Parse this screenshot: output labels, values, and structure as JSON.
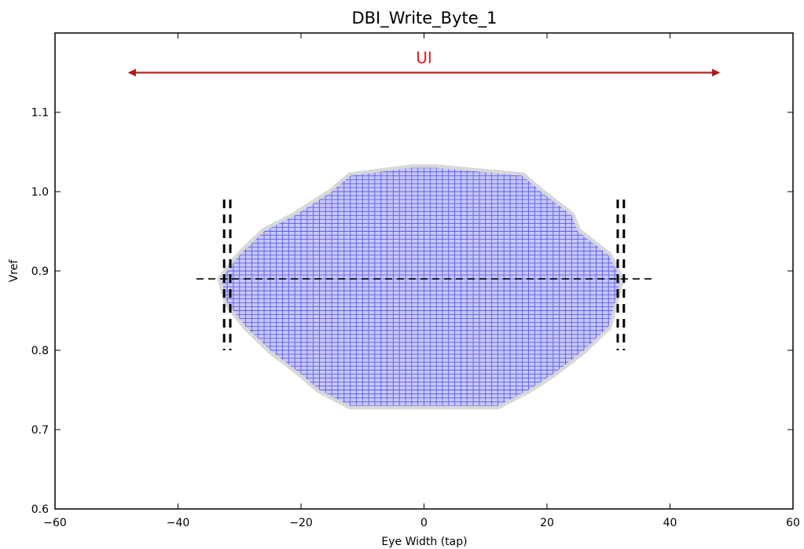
{
  "chart_data": {
    "type": "heatmap",
    "title": "DBI_Write_Byte_1",
    "xlabel": "Eye Width (tap)",
    "ylabel": "Vref",
    "xlim": [
      -60,
      60
    ],
    "ylim": [
      0.6,
      1.2
    ],
    "x_ticks": [
      -60,
      -40,
      -20,
      0,
      20,
      40,
      60
    ],
    "x_tick_labels": [
      "−60",
      "−40",
      "−20",
      "0",
      "20",
      "40",
      "60"
    ],
    "y_ticks": [
      0.6,
      0.7,
      0.8,
      0.9,
      1.0,
      1.1
    ],
    "y_tick_labels": [
      "0.6",
      "0.7",
      "0.8",
      "0.9",
      "1.0",
      "1.1"
    ],
    "grid": false,
    "colors": {
      "eye_grid": "#3a3ae8",
      "eye_fill": "#c8c8f6",
      "eye_edge": "#b8b8b8",
      "ui_arrow": "#c02020",
      "ui_text": "#e02020",
      "markers": "#000000"
    },
    "eye_region": {
      "x_step": 1,
      "y_step": 0.005,
      "rows": [
        {
          "y": 0.73,
          "x_min": -12,
          "x_max": 12
        },
        {
          "y": 0.75,
          "x_min": -17,
          "x_max": 17
        },
        {
          "y": 0.77,
          "x_min": -20,
          "x_max": 21
        },
        {
          "y": 0.8,
          "x_min": -25,
          "x_max": 26
        },
        {
          "y": 0.83,
          "x_min": -29,
          "x_max": 30
        },
        {
          "y": 0.86,
          "x_min": -32,
          "x_max": 31
        },
        {
          "y": 0.89,
          "x_min": -33,
          "x_max": 32
        },
        {
          "y": 0.92,
          "x_min": -30,
          "x_max": 30
        },
        {
          "y": 0.95,
          "x_min": -26,
          "x_max": 25
        },
        {
          "y": 0.97,
          "x_min": -21,
          "x_max": 24
        },
        {
          "y": 1.0,
          "x_min": -15,
          "x_max": 19
        },
        {
          "y": 1.02,
          "x_min": -12,
          "x_max": 16
        },
        {
          "y": 1.03,
          "x_min": -2,
          "x_max": 2
        }
      ]
    },
    "center_line": {
      "y": 0.89,
      "x_start": -37,
      "x_end": 37
    },
    "limit_markers": [
      {
        "x": -32.5,
        "y_min": 0.8,
        "y_max": 0.99
      },
      {
        "x": -31.5,
        "y_min": 0.8,
        "y_max": 0.99
      },
      {
        "x": 31.5,
        "y_min": 0.8,
        "y_max": 0.99
      },
      {
        "x": 32.5,
        "y_min": 0.8,
        "y_max": 0.99
      }
    ],
    "ui_annotation": {
      "label": "UI",
      "x_start": -48,
      "x_end": 48,
      "y": 1.15
    }
  }
}
